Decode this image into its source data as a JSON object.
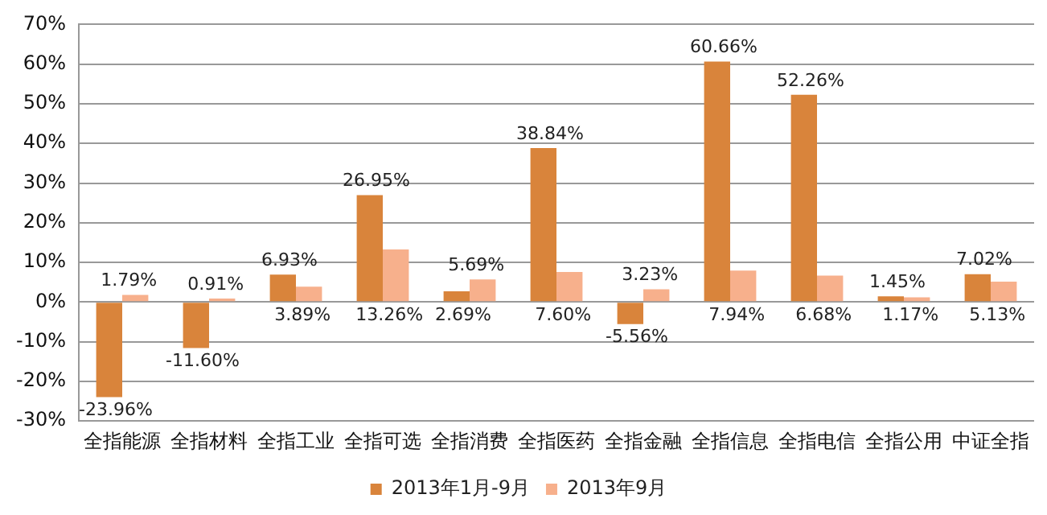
{
  "chart_data": {
    "type": "bar",
    "categories": [
      "全指能源",
      "全指材料",
      "全指工业",
      "全指可选",
      "全指消费",
      "全指医药",
      "全指金融",
      "全指信息",
      "全指电信",
      "全指公用",
      "中证全指"
    ],
    "series": [
      {
        "name": "2013年1月-9月",
        "color": "#d9843b",
        "values": [
          -23.96,
          -11.6,
          6.93,
          26.95,
          2.69,
          38.84,
          -5.56,
          60.66,
          52.26,
          1.45,
          7.02
        ],
        "value_labels": [
          "-23.96%",
          "-11.60%",
          "6.93%",
          "26.95%",
          "2.69%",
          "38.84%",
          "-5.56%",
          "60.66%",
          "52.26%",
          "1.45%",
          "7.02%"
        ]
      },
      {
        "name": "2013年9月",
        "color": "#f7b08c",
        "values": [
          1.79,
          0.91,
          3.89,
          13.26,
          5.69,
          7.6,
          3.23,
          7.94,
          6.68,
          1.17,
          5.13
        ],
        "value_labels": [
          "1.79%",
          "0.91%",
          "3.89%",
          "13.26%",
          "5.69%",
          "7.60%",
          "3.23%",
          "7.94%",
          "6.68%",
          "1.17%",
          "5.13%"
        ]
      }
    ],
    "ylim": [
      -30,
      70
    ],
    "yticks": [
      {
        "value": -30,
        "label": "-30%"
      },
      {
        "value": -20,
        "label": "-20%"
      },
      {
        "value": -10,
        "label": "-10%"
      },
      {
        "value": 0,
        "label": "0%"
      },
      {
        "value": 10,
        "label": "10%"
      },
      {
        "value": 20,
        "label": "20%"
      },
      {
        "value": 30,
        "label": "30%"
      },
      {
        "value": 40,
        "label": "40%"
      },
      {
        "value": 50,
        "label": "50%"
      },
      {
        "value": 60,
        "label": "60%"
      },
      {
        "value": 70,
        "label": "70%"
      }
    ],
    "grid": "y",
    "legend": "bottom"
  }
}
